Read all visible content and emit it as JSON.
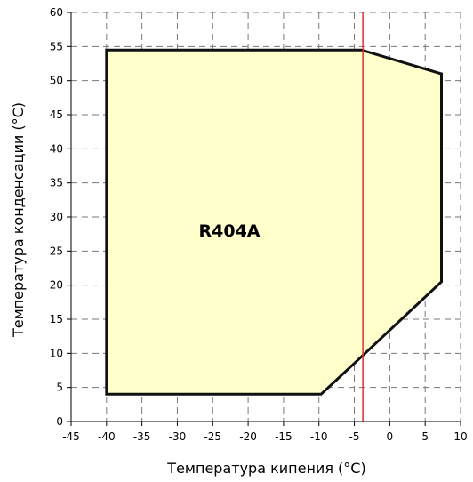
{
  "chart_data": {
    "type": "area",
    "title": "",
    "xlabel": "Температура кипения (°C)",
    "ylabel": "Температура конденсации (°C)",
    "xlim": [
      -45,
      10
    ],
    "ylim": [
      0,
      60
    ],
    "x_ticks": [
      "-45",
      "-40",
      "-35",
      "-30",
      "-25",
      "-20",
      "-15",
      "-10",
      "-5",
      "0",
      "5",
      "10"
    ],
    "y_ticks": [
      "0",
      "5",
      "10",
      "15",
      "20",
      "25",
      "30",
      "35",
      "40",
      "45",
      "50",
      "55",
      "60"
    ],
    "grid": true,
    "series": [
      {
        "name": "R404A",
        "points": [
          {
            "x": -40,
            "y": 54.5
          },
          {
            "x": -4,
            "y": 54.5
          },
          {
            "x": 7.3,
            "y": 51
          },
          {
            "x": 7.3,
            "y": 20.5
          },
          {
            "x": -4,
            "y": 9.5
          },
          {
            "x": -9.7,
            "y": 4
          },
          {
            "x": -40,
            "y": 4
          }
        ]
      }
    ],
    "reference_line": {
      "x": -3.8
    },
    "colors": {
      "fill": "#ffffcc",
      "outline": "#111111",
      "reference_line": "#e03030",
      "grid": "#777777"
    }
  }
}
